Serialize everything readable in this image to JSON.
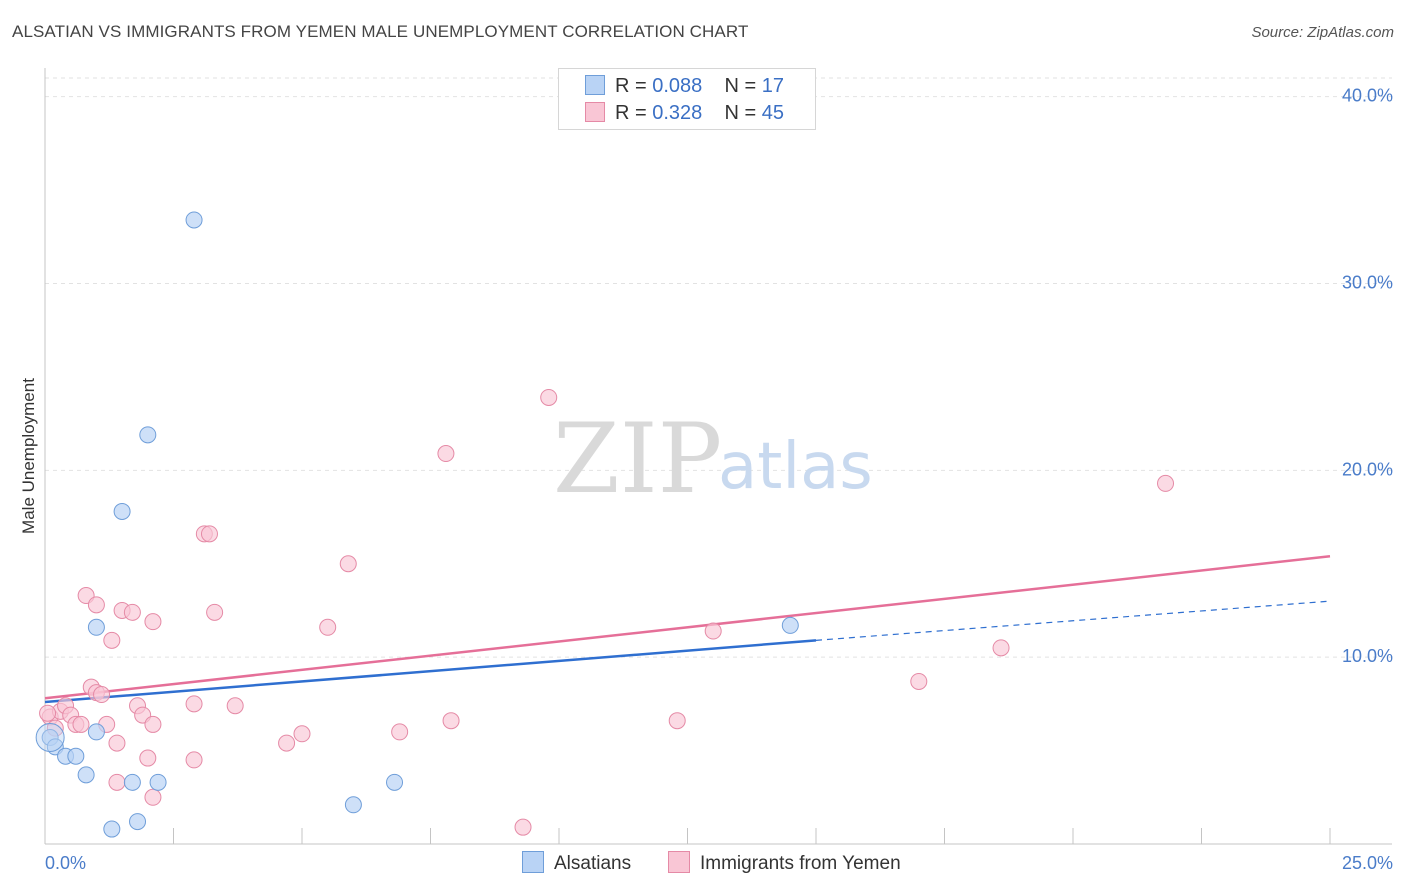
{
  "header": {
    "title": "ALSATIAN VS IMMIGRANTS FROM YEMEN MALE UNEMPLOYMENT CORRELATION CHART",
    "source": "Source: ZipAtlas.com"
  },
  "watermark": {
    "zip": "ZIP",
    "atlas": "atlas"
  },
  "colors": {
    "blue_fill": "#b9d3f5",
    "blue_stroke": "#6f9ed9",
    "blue_line": "#2f6fd0",
    "pink_fill": "#f9c6d5",
    "pink_stroke": "#e58aa6",
    "pink_line": "#e56f98",
    "grid": "#e2e2e2",
    "tick_text": "#4a7cc9"
  },
  "legend": {
    "rows": [
      {
        "r_label": "R =",
        "r_value": "0.088",
        "n_label": "N =",
        "n_value": "17"
      },
      {
        "r_label": "R =",
        "r_value": "0.328",
        "n_label": "N =",
        "n_value": "45"
      }
    ]
  },
  "bottom_legend": {
    "alsatians": "Alsatians",
    "yemen": "Immigrants from Yemen"
  },
  "chart_data": {
    "type": "scatter",
    "title": "ALSATIAN VS IMMIGRANTS FROM YEMEN MALE UNEMPLOYMENT CORRELATION CHART",
    "xlabel": "",
    "ylabel": "Male Unemployment",
    "xlim": [
      0,
      25
    ],
    "ylim": [
      0,
      41
    ],
    "x_tick_labels": [
      "0.0%",
      "25.0%"
    ],
    "y_ticks": [
      10,
      20,
      30,
      40
    ],
    "y_tick_labels": [
      "10.0%",
      "20.0%",
      "30.0%",
      "40.0%"
    ],
    "x_minor_ticks": [
      2.5,
      5,
      7.5,
      10,
      12.5,
      15,
      17.5,
      20,
      22.5,
      25
    ],
    "series": [
      {
        "name": "Alsatians",
        "r": 0.088,
        "n": 17,
        "points": [
          [
            0.1,
            5.7
          ],
          [
            0.2,
            5.2
          ],
          [
            0.4,
            4.7
          ],
          [
            0.6,
            4.7
          ],
          [
            0.8,
            3.7
          ],
          [
            1.0,
            11.6
          ],
          [
            1.0,
            6.0
          ],
          [
            1.3,
            0.8
          ],
          [
            1.5,
            17.8
          ],
          [
            1.7,
            3.3
          ],
          [
            1.8,
            1.2
          ],
          [
            2.0,
            21.9
          ],
          [
            2.2,
            3.3
          ],
          [
            2.9,
            33.4
          ],
          [
            6.0,
            2.1
          ],
          [
            6.8,
            3.3
          ],
          [
            14.5,
            11.7
          ]
        ],
        "trend": {
          "x": [
            0,
            15
          ],
          "y": [
            7.6,
            10.9
          ]
        },
        "trend_dashed": {
          "x": [
            15,
            25
          ],
          "y": [
            10.9,
            13.0
          ]
        }
      },
      {
        "name": "Immigrants from Yemen",
        "r": 0.328,
        "n": 45,
        "points": [
          [
            0.1,
            6.8
          ],
          [
            0.2,
            6.2
          ],
          [
            0.3,
            7.1
          ],
          [
            0.4,
            7.4
          ],
          [
            0.5,
            6.9
          ],
          [
            0.6,
            6.4
          ],
          [
            0.7,
            6.4
          ],
          [
            0.8,
            13.3
          ],
          [
            0.9,
            8.4
          ],
          [
            1.0,
            8.1
          ],
          [
            1.0,
            12.8
          ],
          [
            1.1,
            8.0
          ],
          [
            1.2,
            6.4
          ],
          [
            1.3,
            10.9
          ],
          [
            1.4,
            5.4
          ],
          [
            1.4,
            3.3
          ],
          [
            1.5,
            12.5
          ],
          [
            1.7,
            12.4
          ],
          [
            1.8,
            7.4
          ],
          [
            1.9,
            6.9
          ],
          [
            2.0,
            4.6
          ],
          [
            2.1,
            11.9
          ],
          [
            2.1,
            2.5
          ],
          [
            2.1,
            6.4
          ],
          [
            2.9,
            7.5
          ],
          [
            2.9,
            4.5
          ],
          [
            3.1,
            16.6
          ],
          [
            3.2,
            16.6
          ],
          [
            3.3,
            12.4
          ],
          [
            3.7,
            7.4
          ],
          [
            4.7,
            5.4
          ],
          [
            5.0,
            5.9
          ],
          [
            5.5,
            11.6
          ],
          [
            5.9,
            15.0
          ],
          [
            6.9,
            6.0
          ],
          [
            7.8,
            20.9
          ],
          [
            7.9,
            6.6
          ],
          [
            9.3,
            0.9
          ],
          [
            9.8,
            23.9
          ],
          [
            12.3,
            6.6
          ],
          [
            13.0,
            11.4
          ],
          [
            17.0,
            8.7
          ],
          [
            18.6,
            10.5
          ],
          [
            21.8,
            19.3
          ],
          [
            0.05,
            7.0
          ]
        ],
        "trend": {
          "x": [
            0,
            25
          ],
          "y": [
            7.8,
            15.4
          ]
        }
      }
    ]
  }
}
